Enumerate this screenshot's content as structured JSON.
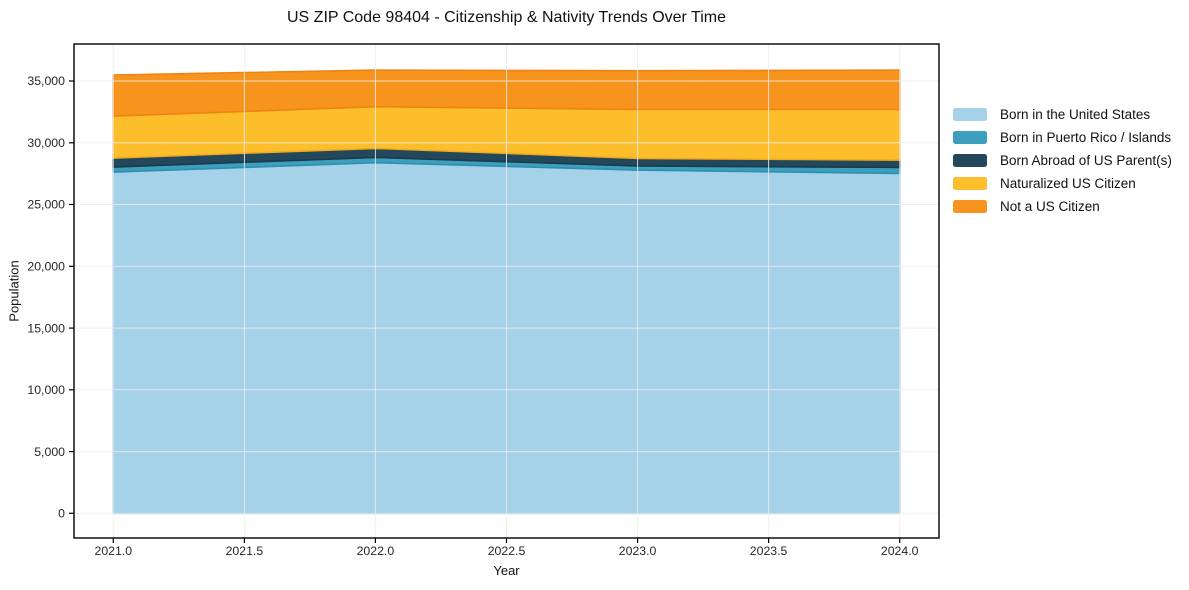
{
  "page": {
    "background": "#ffffff"
  },
  "chart_data": {
    "type": "area",
    "stacked": true,
    "title": "US ZIP Code 98404 - Citizenship & Nativity Trends Over Time",
    "xlabel": "Year",
    "ylabel": "Population",
    "x": [
      2021,
      2022,
      2023,
      2024
    ],
    "series": [
      {
        "name": "Born in the United States",
        "color": "#a5d2e8",
        "edge": "#8bc2dd",
        "values": [
          27630,
          28390,
          27790,
          27520
        ]
      },
      {
        "name": "Born in Puerto Rico / Islands",
        "color": "#3d9fbe",
        "edge": "#2f8fae",
        "values": [
          400,
          430,
          330,
          490
        ]
      },
      {
        "name": "Born Abroad of US Parent(s)",
        "color": "#23485b",
        "edge": "#1b3a4a",
        "values": [
          730,
          730,
          620,
          590
        ]
      },
      {
        "name": "Naturalized US Citizen",
        "color": "#fdbe2c",
        "edge": "#f2ab1d",
        "values": [
          3400,
          3370,
          3960,
          4100
        ]
      },
      {
        "name": "Not a US Citizen",
        "color": "#f7941e",
        "edge": "#ec8414",
        "values": [
          3330,
          2970,
          3140,
          3190
        ]
      }
    ],
    "x_ticks": [
      "2021.0",
      "2021.5",
      "2022.0",
      "2022.5",
      "2023.0",
      "2023.5",
      "2024.0"
    ],
    "y_ticks": [
      0,
      5000,
      10000,
      15000,
      20000,
      25000,
      30000,
      35000
    ],
    "xlim": [
      2020.85,
      2024.15
    ],
    "ylim": [
      -2000,
      38000
    ],
    "grid": true,
    "grid_above_areas": true,
    "legend_position": "right",
    "colors": {
      "grid": "#ececec",
      "spine": "#000000",
      "tick": "#000000",
      "tick_label": "#262626",
      "title": "#111111"
    }
  }
}
